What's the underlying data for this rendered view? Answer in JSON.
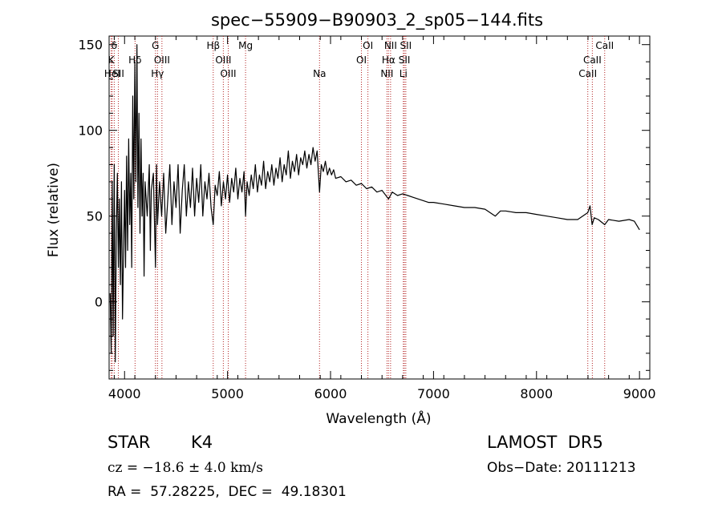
{
  "chart_data": {
    "type": "line",
    "title": "spec−55909−B90903_2_sp05−144.fits",
    "xlabel": "Wavelength (Å)",
    "ylabel": "Flux (relative)",
    "xlim": [
      3850,
      9100
    ],
    "ylim": [
      -45,
      155
    ],
    "xticks": [
      4000,
      5000,
      6000,
      7000,
      8000,
      9000
    ],
    "yticks": [
      0,
      50,
      100,
      150
    ],
    "grid": false,
    "series_color": "#000000",
    "line_marker_color": "#b22222",
    "series": [
      {
        "points": [
          [
            3860,
            5
          ],
          [
            3870,
            -30
          ],
          [
            3880,
            70
          ],
          [
            3890,
            -20
          ],
          [
            3900,
            80
          ],
          [
            3910,
            -35
          ],
          [
            3920,
            40
          ],
          [
            3930,
            75
          ],
          [
            3940,
            20
          ],
          [
            3950,
            60
          ],
          [
            3960,
            10
          ],
          [
            3970,
            70
          ],
          [
            3980,
            -10
          ],
          [
            3990,
            30
          ],
          [
            4000,
            65
          ],
          [
            4010,
            20
          ],
          [
            4020,
            85
          ],
          [
            4030,
            30
          ],
          [
            4040,
            95
          ],
          [
            4050,
            45
          ],
          [
            4060,
            75
          ],
          [
            4070,
            20
          ],
          [
            4080,
            120
          ],
          [
            4090,
            60
          ],
          [
            4100,
            140
          ],
          [
            4110,
            70
          ],
          [
            4120,
            150
          ],
          [
            4130,
            55
          ],
          [
            4140,
            110
          ],
          [
            4150,
            40
          ],
          [
            4160,
            95
          ],
          [
            4170,
            50
          ],
          [
            4180,
            75
          ],
          [
            4190,
            15
          ],
          [
            4200,
            70
          ],
          [
            4220,
            50
          ],
          [
            4240,
            80
          ],
          [
            4250,
            30
          ],
          [
            4260,
            65
          ],
          [
            4280,
            75
          ],
          [
            4300,
            20
          ],
          [
            4310,
            80
          ],
          [
            4320,
            45
          ],
          [
            4340,
            70
          ],
          [
            4360,
            50
          ],
          [
            4380,
            75
          ],
          [
            4400,
            40
          ],
          [
            4420,
            60
          ],
          [
            4440,
            80
          ],
          [
            4460,
            45
          ],
          [
            4480,
            70
          ],
          [
            4500,
            55
          ],
          [
            4520,
            80
          ],
          [
            4540,
            40
          ],
          [
            4560,
            65
          ],
          [
            4580,
            80
          ],
          [
            4600,
            50
          ],
          [
            4620,
            70
          ],
          [
            4640,
            55
          ],
          [
            4660,
            78
          ],
          [
            4680,
            50
          ],
          [
            4700,
            72
          ],
          [
            4720,
            58
          ],
          [
            4740,
            80
          ],
          [
            4760,
            50
          ],
          [
            4780,
            70
          ],
          [
            4800,
            60
          ],
          [
            4820,
            75
          ],
          [
            4840,
            55
          ],
          [
            4861,
            45
          ],
          [
            4880,
            68
          ],
          [
            4900,
            62
          ],
          [
            4920,
            76
          ],
          [
            4940,
            56
          ],
          [
            4960,
            70
          ],
          [
            4980,
            60
          ],
          [
            5000,
            74
          ],
          [
            5020,
            58
          ],
          [
            5040,
            72
          ],
          [
            5060,
            64
          ],
          [
            5080,
            78
          ],
          [
            5100,
            60
          ],
          [
            5120,
            72
          ],
          [
            5140,
            64
          ],
          [
            5160,
            76
          ],
          [
            5175,
            50
          ],
          [
            5190,
            70
          ],
          [
            5210,
            62
          ],
          [
            5230,
            74
          ],
          [
            5250,
            66
          ],
          [
            5270,
            80
          ],
          [
            5290,
            64
          ],
          [
            5310,
            74
          ],
          [
            5330,
            68
          ],
          [
            5350,
            82
          ],
          [
            5370,
            66
          ],
          [
            5390,
            76
          ],
          [
            5410,
            70
          ],
          [
            5430,
            80
          ],
          [
            5450,
            68
          ],
          [
            5470,
            78
          ],
          [
            5490,
            72
          ],
          [
            5510,
            84
          ],
          [
            5530,
            70
          ],
          [
            5550,
            80
          ],
          [
            5570,
            74
          ],
          [
            5590,
            88
          ],
          [
            5610,
            72
          ],
          [
            5630,
            82
          ],
          [
            5650,
            76
          ],
          [
            5670,
            86
          ],
          [
            5690,
            74
          ],
          [
            5710,
            84
          ],
          [
            5730,
            80
          ],
          [
            5750,
            88
          ],
          [
            5770,
            78
          ],
          [
            5790,
            86
          ],
          [
            5810,
            80
          ],
          [
            5830,
            90
          ],
          [
            5850,
            82
          ],
          [
            5870,
            88
          ],
          [
            5893,
            64
          ],
          [
            5910,
            80
          ],
          [
            5930,
            76
          ],
          [
            5950,
            82
          ],
          [
            5970,
            74
          ],
          [
            5990,
            78
          ],
          [
            6010,
            74
          ],
          [
            6030,
            77
          ],
          [
            6050,
            72
          ],
          [
            6100,
            73
          ],
          [
            6150,
            70
          ],
          [
            6200,
            71
          ],
          [
            6250,
            68
          ],
          [
            6300,
            69
          ],
          [
            6350,
            66
          ],
          [
            6400,
            67
          ],
          [
            6450,
            64
          ],
          [
            6500,
            65
          ],
          [
            6563,
            60
          ],
          [
            6600,
            64
          ],
          [
            6650,
            62
          ],
          [
            6700,
            63
          ],
          [
            6750,
            62
          ],
          [
            6800,
            61
          ],
          [
            6850,
            60
          ],
          [
            6900,
            59
          ],
          [
            6950,
            58
          ],
          [
            7000,
            58
          ],
          [
            7100,
            57
          ],
          [
            7200,
            56
          ],
          [
            7300,
            55
          ],
          [
            7400,
            55
          ],
          [
            7500,
            54
          ],
          [
            7600,
            50
          ],
          [
            7650,
            53
          ],
          [
            7700,
            53
          ],
          [
            7800,
            52
          ],
          [
            7900,
            52
          ],
          [
            8000,
            51
          ],
          [
            8100,
            50
          ],
          [
            8200,
            49
          ],
          [
            8300,
            48
          ],
          [
            8400,
            48
          ],
          [
            8498,
            52
          ],
          [
            8520,
            56
          ],
          [
            8540,
            45
          ],
          [
            8560,
            49
          ],
          [
            8600,
            48
          ],
          [
            8662,
            45
          ],
          [
            8700,
            48
          ],
          [
            8800,
            47
          ],
          [
            8900,
            48
          ],
          [
            8950,
            47
          ],
          [
            9000,
            42
          ]
        ]
      }
    ],
    "lines": [
      {
        "wl": 3820,
        "label": "H",
        "row": 0
      },
      {
        "wl": 3870,
        "label": "K",
        "row": 1
      },
      {
        "wl": 3880,
        "label": "HeI",
        "row": 2
      },
      {
        "wl": 3900,
        "label": "δ",
        "row": 0
      },
      {
        "wl": 3940,
        "label": "SII",
        "row": 2
      },
      {
        "wl": 4102,
        "label": "Hδ",
        "row": 1
      },
      {
        "wl": 4300,
        "label": "G",
        "row": 0
      },
      {
        "wl": 4320,
        "label": "Hγ",
        "row": 2
      },
      {
        "wl": 4363,
        "label": "OIII",
        "row": 1
      },
      {
        "wl": 4861,
        "label": "Hβ",
        "row": 0
      },
      {
        "wl": 4959,
        "label": "OIII",
        "row": 1
      },
      {
        "wl": 5007,
        "label": "OIII",
        "row": 2
      },
      {
        "wl": 5175,
        "label": "Mg",
        "row": 0
      },
      {
        "wl": 5893,
        "label": "Na",
        "row": 2
      },
      {
        "wl": 6300,
        "label": "OI",
        "row": 1
      },
      {
        "wl": 6363,
        "label": "OI",
        "row": 0
      },
      {
        "wl": 6548,
        "label": "NII",
        "row": 2
      },
      {
        "wl": 6563,
        "label": "Hα",
        "row": 1
      },
      {
        "wl": 6583,
        "label": "NII",
        "row": 0
      },
      {
        "wl": 6707,
        "label": "Li",
        "row": 2
      },
      {
        "wl": 6717,
        "label": "SII",
        "row": 1
      },
      {
        "wl": 6731,
        "label": "SII",
        "row": 0
      },
      {
        "wl": 8498,
        "label": "CaII",
        "row": 2
      },
      {
        "wl": 8542,
        "label": "CaII",
        "row": 1
      },
      {
        "wl": 8662,
        "label": "CaII",
        "row": 0
      }
    ]
  },
  "info": {
    "class": "STAR",
    "subclass": "K4",
    "survey": "LAMOST  DR5",
    "cz": "cz = −18.6 ± 4.0 km/s",
    "obs_date": "Obs−Date: 20111213",
    "radec": "RA =  57.28225,  DEC =  49.18301"
  }
}
